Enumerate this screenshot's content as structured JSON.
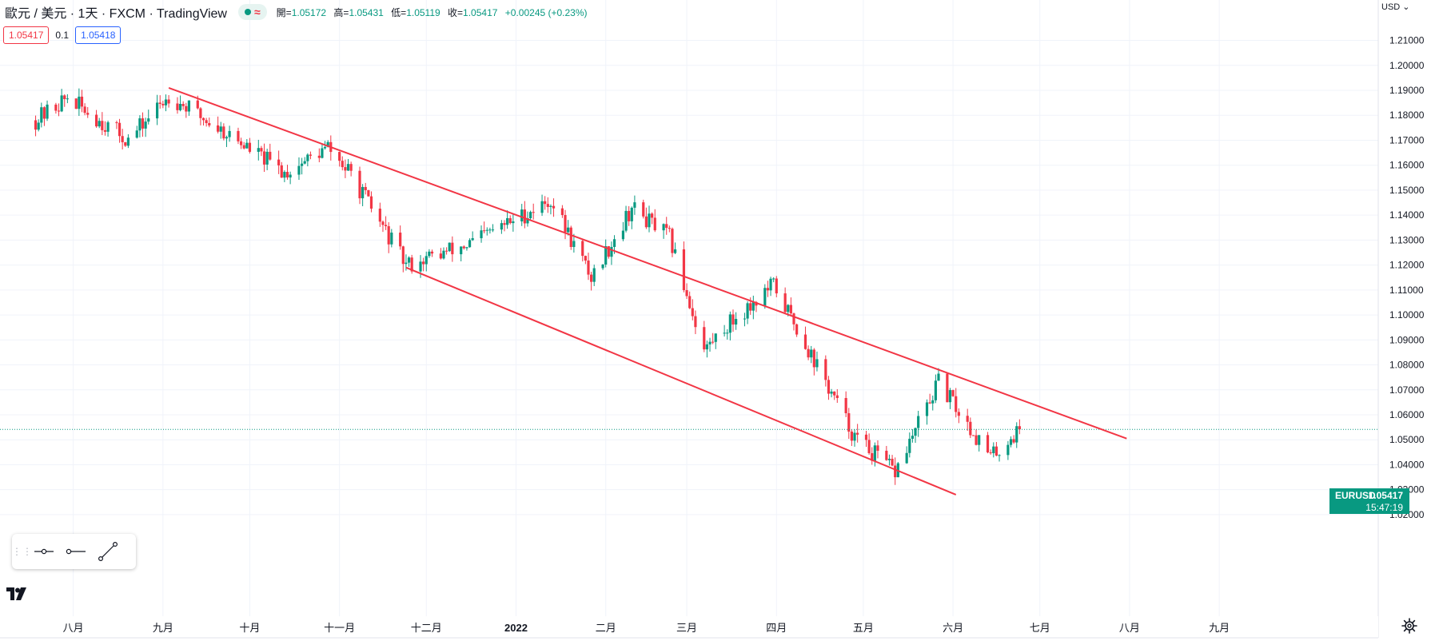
{
  "header": {
    "symbol_title": "歐元 / 美元 · 1天 · FXCM · TradingView",
    "approx_symbol": "≈",
    "ohlc": {
      "open_label": "開=",
      "open": "1.05172",
      "high_label": "高=",
      "high": "1.05431",
      "low_label": "低=",
      "low": "1.05119",
      "close_label": "收=",
      "close": "1.05417",
      "change": "+0.00245 (+0.23%)"
    }
  },
  "trade": {
    "sell": "1.05417",
    "spread": "0.1",
    "buy": "1.05418"
  },
  "price_axis": {
    "currency": "USD",
    "labels": [
      "1.21000",
      "1.20000",
      "1.19000",
      "1.18000",
      "1.17000",
      "1.16000",
      "1.15000",
      "1.14000",
      "1.13000",
      "1.12000",
      "1.11000",
      "1.10000",
      "1.09000",
      "1.08000",
      "1.07000",
      "1.06000",
      "1.05000",
      "1.04000",
      "1.03000",
      "1.02000"
    ]
  },
  "time_axis": {
    "labels": [
      "八月",
      "九月",
      "十月",
      "十一月",
      "十二月",
      "2022",
      "二月",
      "三月",
      "四月",
      "五月",
      "六月",
      "七月",
      "八月",
      "九月"
    ]
  },
  "last_price": {
    "symbol": "EURUSD",
    "price": "1.05417",
    "countdown": "15:47:19"
  },
  "colors": {
    "up": "#089981",
    "down": "#f23645",
    "trendline": "#f23645",
    "grid": "#f0f3fa",
    "text": "#131722"
  },
  "chart_data": {
    "type": "candlestick",
    "symbol": "EURUSD",
    "interval": "1D",
    "ylim": [
      1.015,
      1.215
    ],
    "last_price": 1.05417,
    "anchors": [
      [
        "2021-07-19",
        1.178
      ],
      [
        "2021-07-30",
        1.187
      ],
      [
        "2021-08-20",
        1.17
      ],
      [
        "2021-09-03",
        1.188
      ],
      [
        "2021-09-24",
        1.172
      ],
      [
        "2021-10-13",
        1.157
      ],
      [
        "2021-10-28",
        1.167
      ],
      [
        "2021-11-05",
        1.156
      ],
      [
        "2021-11-24",
        1.12
      ],
      [
        "2021-12-15",
        1.128
      ],
      [
        "2022-01-13",
        1.146
      ],
      [
        "2022-01-27",
        1.115
      ],
      [
        "2022-02-10",
        1.143
      ],
      [
        "2022-02-23",
        1.131
      ],
      [
        "2022-03-07",
        1.086
      ],
      [
        "2022-03-15",
        1.096
      ],
      [
        "2022-03-31",
        1.112
      ],
      [
        "2022-04-13",
        1.084
      ],
      [
        "2022-04-28",
        1.051
      ],
      [
        "2022-05-12",
        1.037
      ],
      [
        "2022-05-27",
        1.073
      ],
      [
        "2022-06-14",
        1.043
      ],
      [
        "2022-06-24",
        1.054
      ]
    ],
    "trendlines": [
      {
        "name": "upper",
        "start": [
          "2021-09-03",
          1.191
        ],
        "end": [
          "2022-07-31",
          1.0505
        ]
      },
      {
        "name": "lower",
        "start": [
          "2021-11-24",
          1.119
        ],
        "end": [
          "2022-06-02",
          1.028
        ]
      }
    ]
  }
}
